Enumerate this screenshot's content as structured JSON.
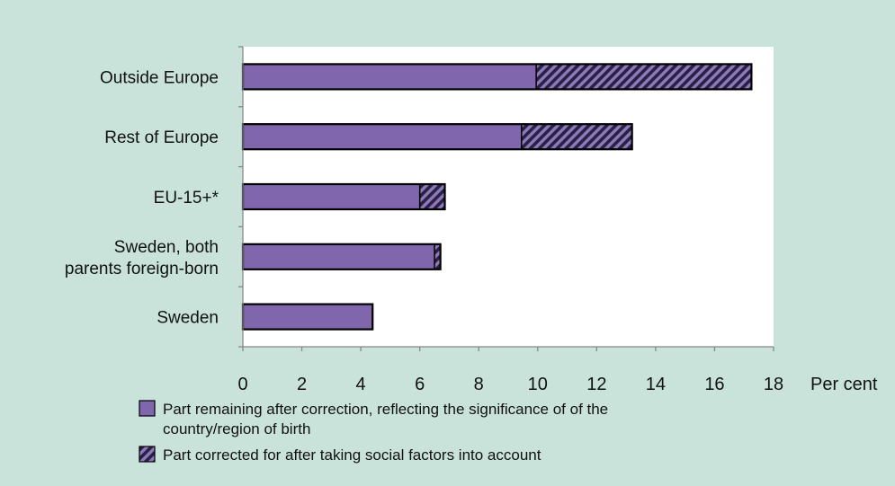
{
  "chart_data": {
    "type": "bar",
    "orientation": "horizontal",
    "stacked": true,
    "categories": [
      [
        "Outside Europe"
      ],
      [
        "Rest of Europe"
      ],
      [
        "EU-15+*"
      ],
      [
        "Sweden, both",
        "parents foreign-born"
      ],
      [
        "Sweden"
      ]
    ],
    "series": [
      {
        "name": "Part remaining  after correction, reflecting the significance of of the country/region of birth",
        "legend_lines": [
          "Part remaining  after correction, reflecting the significance of of the",
          "country/region of birth"
        ],
        "values": [
          9.95,
          9.45,
          6.0,
          6.5,
          4.4
        ],
        "color": "#7f66ad",
        "pattern": "solid"
      },
      {
        "name": "Part corrected for after taking social factors  into account",
        "legend_lines": [
          "Part corrected for after taking social factors  into account"
        ],
        "values": [
          7.3,
          3.75,
          0.85,
          0.2,
          0
        ],
        "color": "#4f3f78",
        "pattern": "diagonal-hatch"
      }
    ],
    "xlim": [
      0,
      18
    ],
    "xticks": [
      0,
      2,
      4,
      6,
      8,
      10,
      12,
      14,
      16,
      18
    ],
    "xunit": "Per cent",
    "grid": false,
    "legend_position": "bottom"
  },
  "colors": {
    "background": "#c9e3db",
    "plot_area": "#ffffff",
    "bar_outline": "#000000"
  }
}
